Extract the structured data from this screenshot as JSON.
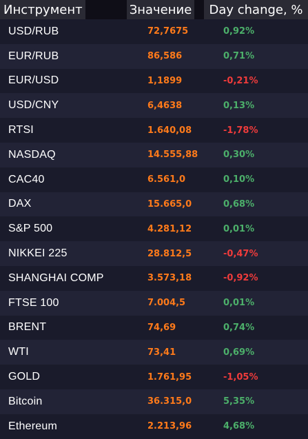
{
  "header": {
    "col_instrument": "Инструмент",
    "col_value": "Значение",
    "col_change": "Day change, %"
  },
  "rows": [
    {
      "name": "USD/RUB",
      "value": "72,7675",
      "change": "0,92%",
      "dir": "up"
    },
    {
      "name": "EUR/RUB",
      "value": "86,586",
      "change": "0,71%",
      "dir": "up"
    },
    {
      "name": "EUR/USD",
      "value": "1,1899",
      "change": "-0,21%",
      "dir": "down"
    },
    {
      "name": "USD/CNY",
      "value": "6,4638",
      "change": "0,13%",
      "dir": "up"
    },
    {
      "name": "RTSI",
      "value": "1.640,08",
      "change": "-1,78%",
      "dir": "down"
    },
    {
      "name": "NASDAQ",
      "value": "14.555,88",
      "change": "0,30%",
      "dir": "up"
    },
    {
      "name": "CAC40",
      "value": "6.561,0",
      "change": "0,10%",
      "dir": "up"
    },
    {
      "name": "DAX",
      "value": "15.665,0",
      "change": "0,68%",
      "dir": "up"
    },
    {
      "name": "S&P 500",
      "value": "4.281,12",
      "change": "0,01%",
      "dir": "up"
    },
    {
      "name": "NIKKEI 225",
      "value": "28.812,5",
      "change": "-0,47%",
      "dir": "down"
    },
    {
      "name": "SHANGHAI COMP",
      "value": "3.573,18",
      "change": "-0,92%",
      "dir": "down"
    },
    {
      "name": "FTSE 100",
      "value": "7.004,5",
      "change": "0,01%",
      "dir": "up"
    },
    {
      "name": "BRENT",
      "value": "74,69",
      "change": "0,74%",
      "dir": "up"
    },
    {
      "name": "WTI",
      "value": "73,41",
      "change": "0,69%",
      "dir": "up"
    },
    {
      "name": "GOLD",
      "value": "1.761,95",
      "change": "-1,05%",
      "dir": "down"
    },
    {
      "name": "Bitcoin",
      "value": "36.315,0",
      "change": "5,35%",
      "dir": "up"
    },
    {
      "name": "Ethereum",
      "value": "2.213,96",
      "change": "4,68%",
      "dir": "up"
    }
  ],
  "colors": {
    "background": "#0f0e17",
    "value": "#ff7a1a",
    "positive": "#4caf6a",
    "negative": "#ef3b3b"
  }
}
